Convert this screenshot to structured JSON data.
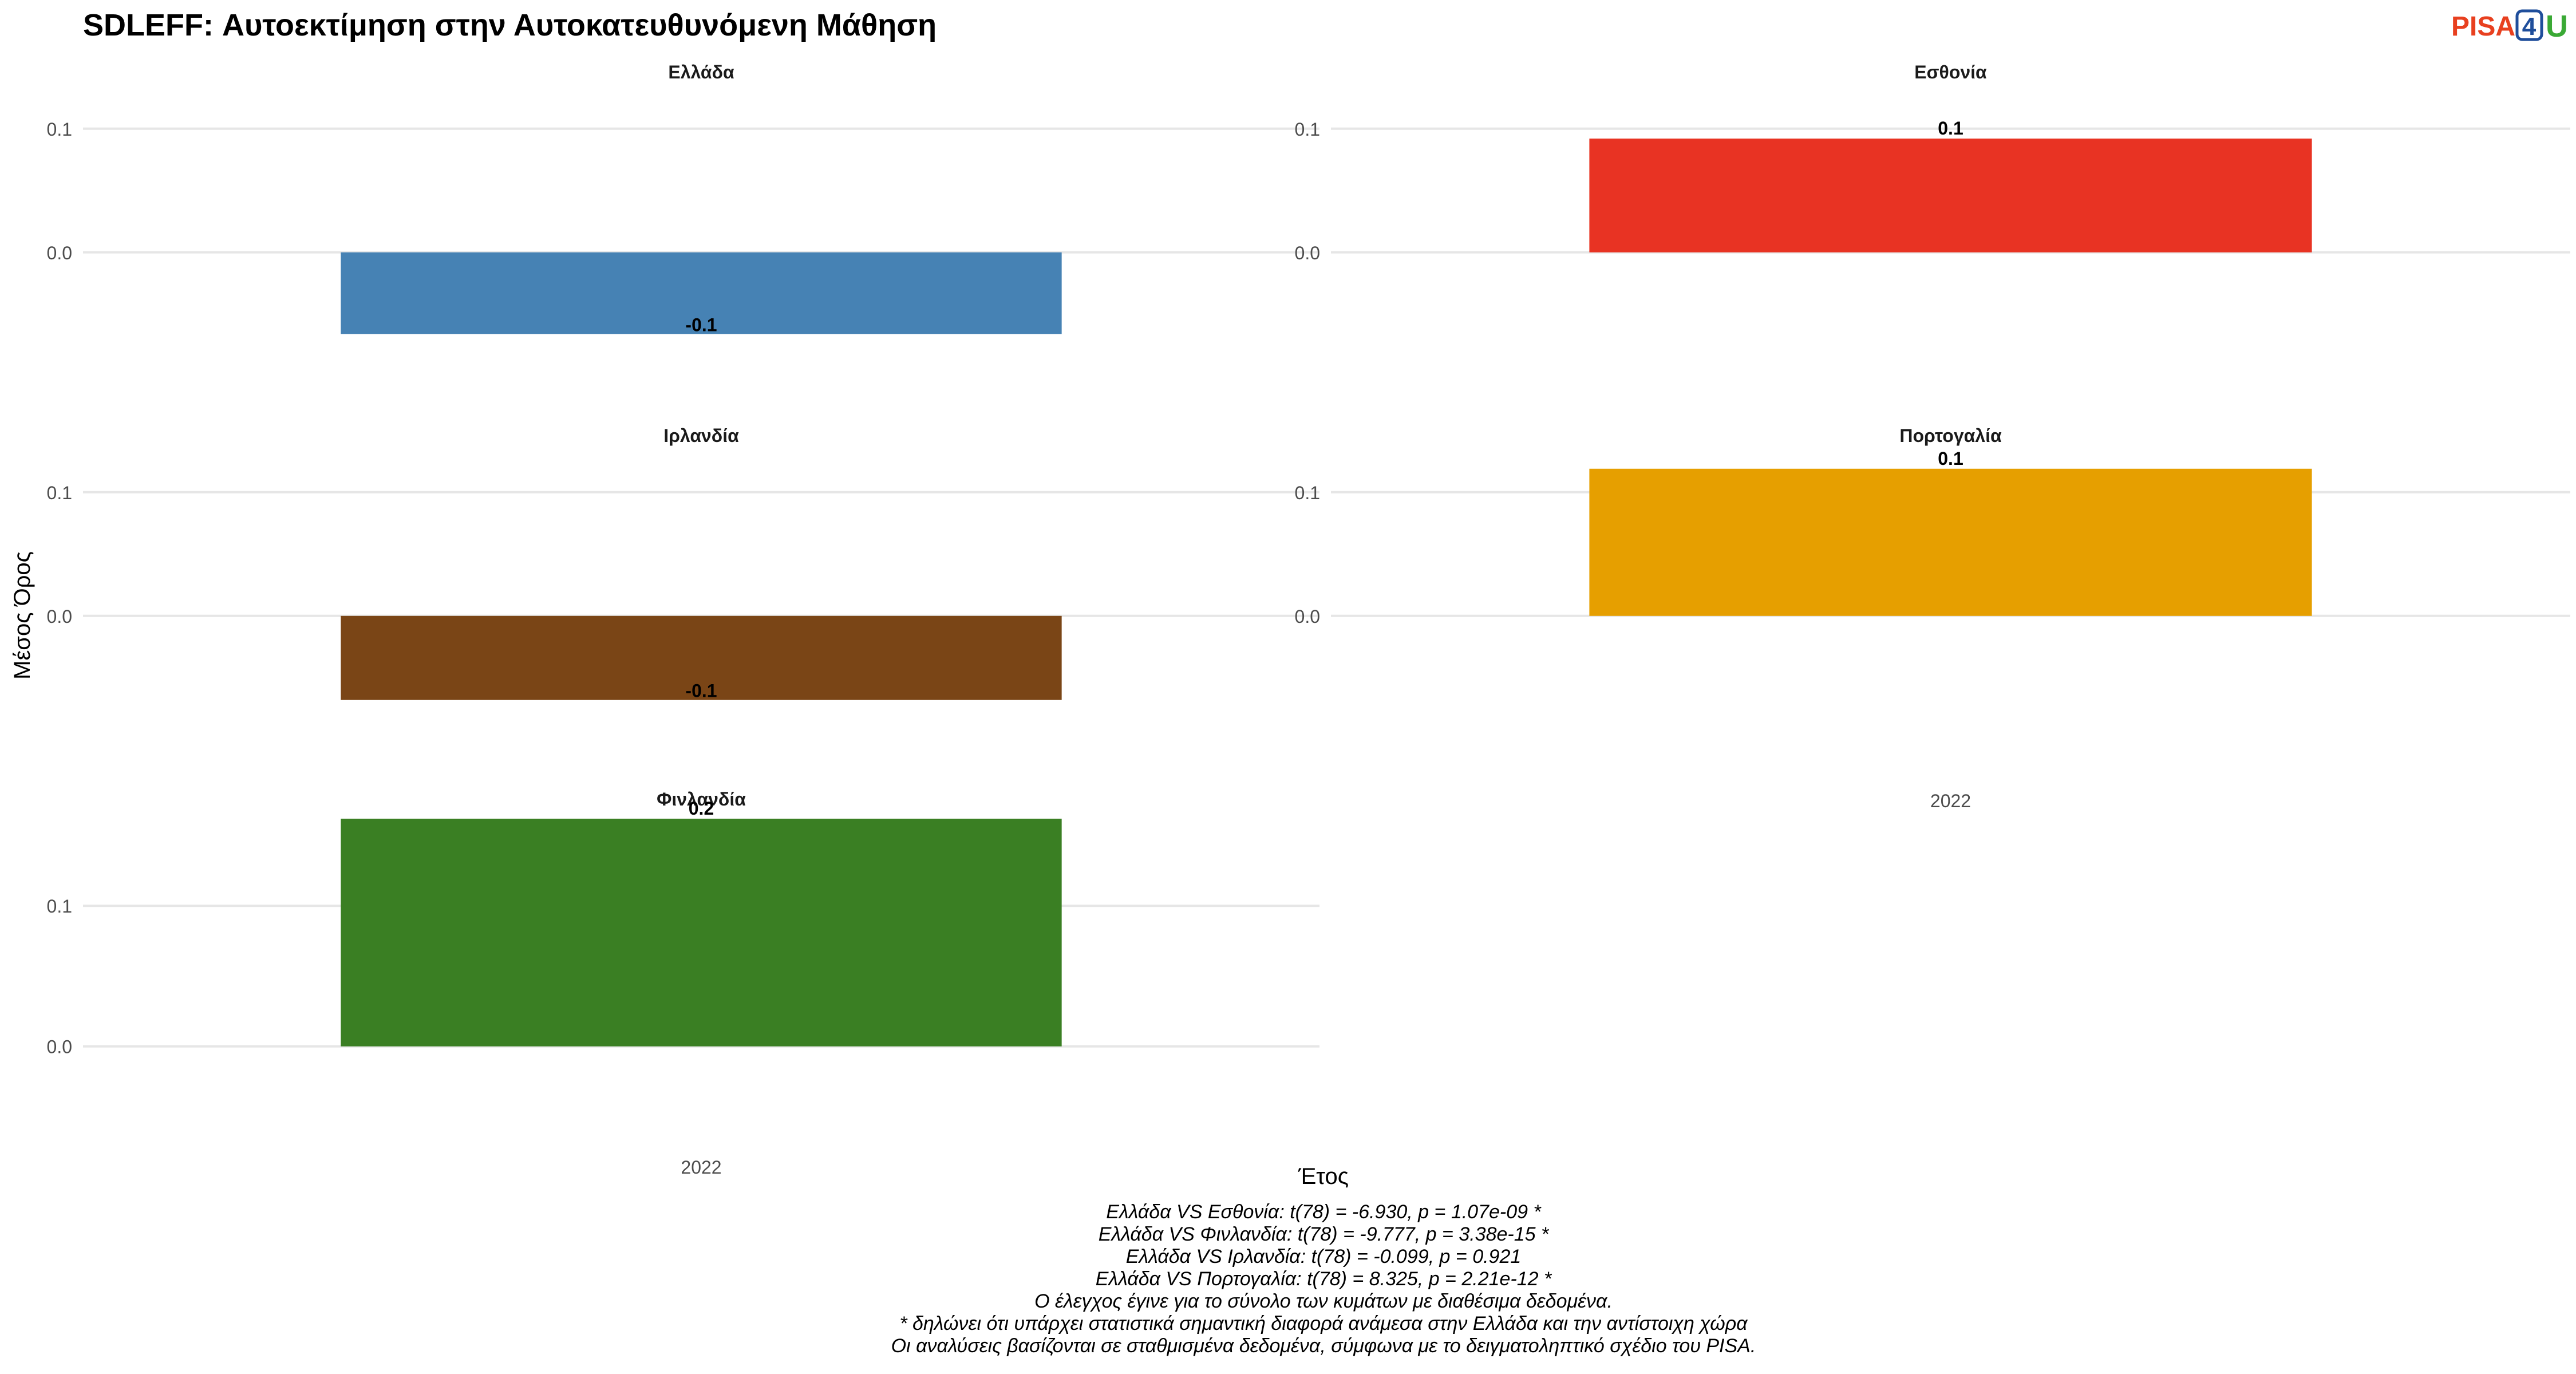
{
  "logo": {
    "text_pisa": "PISA",
    "text_4": "4",
    "text_u": "U",
    "colors": {
      "pisa": "#e8401f",
      "four": "#1f4e9b",
      "u": "#3aa935"
    }
  },
  "chart_data": {
    "type": "bar",
    "title": "SDLEFF: Αυτοεκτίμηση στην Αυτοκατευθυνόμενη Μάθηση",
    "xlabel": "Έτος",
    "ylabel": "Μέσος Όρος",
    "categories": [
      "2022"
    ],
    "facet_scales": "free_y",
    "panels": [
      {
        "name": "Ελλάδα",
        "year": "2022",
        "value": -0.066,
        "label": "-0.1",
        "color": "#4682b4",
        "yticks": [
          0.0,
          0.1
        ],
        "ylim": [
          -0.12,
          0.13
        ]
      },
      {
        "name": "Εσθονία",
        "year": "2022",
        "value": 0.092,
        "label": "0.1",
        "color": "#e83323",
        "yticks": [
          0.0,
          0.1
        ],
        "ylim": [
          -0.12,
          0.13
        ]
      },
      {
        "name": "Ιρλανδία",
        "year": "2022",
        "value": -0.068,
        "label": "-0.1",
        "color": "#7a4516",
        "yticks": [
          0.0,
          0.1
        ],
        "ylim": [
          -0.12,
          0.13
        ]
      },
      {
        "name": "Πορτογαλία",
        "year": "2022",
        "value": 0.119,
        "label": "0.1",
        "color": "#e69f00",
        "yticks": [
          0.0,
          0.1
        ],
        "ylim": [
          -0.12,
          0.13
        ]
      },
      {
        "name": "Φινλανδία",
        "year": "2022",
        "value": 0.162,
        "label": "0.2",
        "color": "#3a7f23",
        "yticks": [
          0.0,
          0.1
        ],
        "ylim": [
          -0.06,
          0.162
        ]
      }
    ],
    "grid": true
  },
  "caption": {
    "lines": [
      "Ελλάδα VS Εσθονία: t(78) = -6.930, p = 1.07e-09 *",
      "Ελλάδα VS Φινλανδία: t(78) = -9.777, p = 3.38e-15 *",
      "Ελλάδα VS Ιρλανδία: t(78) = -0.099, p = 0.921",
      "Ελλάδα VS Πορτογαλία: t(78) = 8.325, p = 2.21e-12 *",
      "Ο έλεγχος έγινε για το σύνολο των κυμάτων με διαθέσιμα δεδομένα.",
      "* δηλώνει ότι υπάρχει στατιστικά σημαντική διαφορά ανάμεσα στην Ελλάδα και την αντίστοιχη χώρα",
      "Οι αναλύσεις βασίζονται σε σταθμισμένα δεδομένα, σύμφωνα με το δειγματοληπτικό σχέδιο του PISA."
    ]
  }
}
